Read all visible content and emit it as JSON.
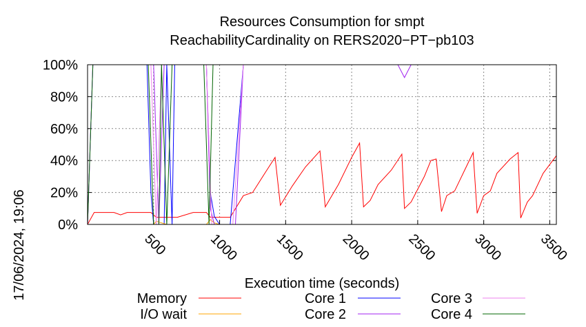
{
  "chart_data": {
    "type": "line",
    "title_line1": "Resources Consumption for smpt",
    "title_line2": "ReachabilityCardinality on RERS2020−PT−pb103",
    "xlabel": "Execution time (seconds)",
    "ylabel": "",
    "side_timestamp": "17/06/2024, 19:06",
    "xlim": [
      0,
      3550
    ],
    "ylim": [
      0,
      100
    ],
    "x_ticks": [
      500,
      1000,
      1500,
      2000,
      2500,
      3000,
      3500
    ],
    "x_tick_labels": [
      "500",
      "1000",
      "1500",
      "2000",
      "2500",
      "3000",
      "3500"
    ],
    "y_ticks": [
      0,
      20,
      40,
      60,
      80,
      100
    ],
    "y_tick_labels": [
      "0%",
      "20%",
      "40%",
      "60%",
      "80%",
      "100%"
    ],
    "grid": true,
    "legend_position": "bottom",
    "series": [
      {
        "name": "Memory",
        "color": "#ff0000",
        "x": [
          0,
          50,
          150,
          200,
          250,
          300,
          350,
          480,
          520,
          600,
          680,
          800,
          900,
          930,
          960,
          1000,
          1050,
          1080,
          1180,
          1250,
          1350,
          1420,
          1460,
          1550,
          1650,
          1760,
          1800,
          1900,
          2000,
          2060,
          2090,
          2140,
          2200,
          2300,
          2380,
          2400,
          2450,
          2550,
          2600,
          2640,
          2680,
          2720,
          2780,
          2850,
          2920,
          2950,
          3000,
          3050,
          3100,
          3200,
          3260,
          3280,
          3330,
          3370,
          3450,
          3550
        ],
        "y": [
          0,
          7.5,
          7.5,
          7.5,
          6,
          7.5,
          7.5,
          7.5,
          4.5,
          4.5,
          4.5,
          7.5,
          7.5,
          4.5,
          4.5,
          4.5,
          4.5,
          4.5,
          18,
          20,
          33,
          42,
          12,
          24,
          36,
          46,
          11,
          25,
          42,
          51,
          11,
          15,
          25,
          34,
          44,
          10,
          14,
          30,
          40,
          41,
          8,
          18,
          21,
          33,
          45,
          7,
          18,
          21,
          32,
          41,
          45,
          4,
          14,
          18,
          32,
          43
        ]
      },
      {
        "name": "Core 1",
        "color": "#0000ff",
        "x": [
          0,
          40,
          450,
          480,
          500,
          540,
          580,
          600,
          640,
          660,
          700,
          900,
          930,
          960,
          1000,
          1050,
          1080,
          1180,
          3550
        ],
        "y": [
          0,
          100,
          100,
          20,
          0,
          0,
          0,
          100,
          0,
          100,
          100,
          100,
          20,
          5,
          0,
          0,
          0,
          100,
          100
        ]
      },
      {
        "name": "I/O wait",
        "color": "#ffa500",
        "x": [
          0,
          500,
          520,
          600,
          640,
          900,
          930,
          960,
          1000,
          1050,
          1100,
          1180,
          3550
        ],
        "y": [
          0,
          0,
          2,
          0,
          0,
          0,
          3,
          1,
          0,
          0,
          0,
          0,
          0
        ]
      },
      {
        "name": "Core 2",
        "color": "#a020f0",
        "x": [
          0,
          40,
          450,
          500,
          540,
          580,
          640,
          700,
          900,
          930,
          960,
          1000,
          1050,
          1120,
          1180,
          2350,
          2400,
          2450,
          3550
        ],
        "y": [
          0,
          100,
          100,
          100,
          0,
          100,
          100,
          100,
          100,
          10,
          0,
          0,
          0,
          0,
          100,
          100,
          92,
          100,
          100
        ]
      },
      {
        "name": "Core 3",
        "color": "#ee82ee",
        "x": [
          0,
          40,
          450,
          480,
          520,
          560,
          600,
          640,
          700,
          900,
          940,
          980,
          1050,
          1100,
          1180,
          3550
        ],
        "y": [
          0,
          100,
          100,
          100,
          0,
          100,
          100,
          100,
          100,
          100,
          0,
          0,
          0,
          0,
          100,
          100
        ]
      },
      {
        "name": "Core 4",
        "color": "#006400",
        "x": [
          0,
          40,
          460,
          500,
          540,
          560,
          600,
          640,
          680,
          880,
          920,
          950,
          1000,
          1050,
          1180,
          3550
        ],
        "y": [
          0,
          100,
          100,
          0,
          0,
          100,
          0,
          100,
          100,
          100,
          0,
          100,
          100,
          100,
          100,
          100
        ]
      }
    ]
  }
}
